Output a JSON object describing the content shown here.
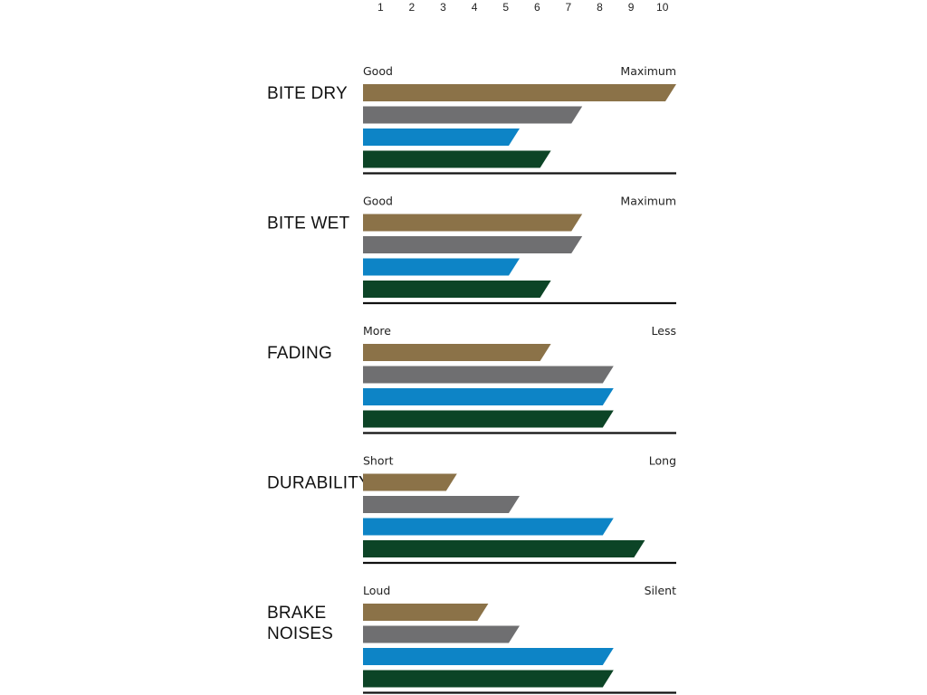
{
  "chart_data": {
    "type": "bar",
    "orientation": "horizontal",
    "x_ticks": [
      "1",
      "2",
      "3",
      "4",
      "5",
      "6",
      "7",
      "8",
      "9",
      "10"
    ],
    "xlim": [
      0,
      10
    ],
    "grid": false,
    "legend": "none",
    "series_colors": [
      "#8b7248",
      "#6f6f71",
      "#0d84c6",
      "#0c4426"
    ],
    "groups": [
      {
        "label_lines": [
          "BITE DRY"
        ],
        "low_label": "Good",
        "high_label": "Maximum",
        "values": [
          10,
          7,
          5,
          6
        ]
      },
      {
        "label_lines": [
          "BITE WET"
        ],
        "low_label": "Good",
        "high_label": "Maximum",
        "values": [
          7,
          7,
          5,
          6
        ]
      },
      {
        "label_lines": [
          "FADING"
        ],
        "low_label": "More",
        "high_label": "Less",
        "values": [
          6,
          8,
          8,
          8
        ]
      },
      {
        "label_lines": [
          "DURABILITY"
        ],
        "low_label": "Short",
        "high_label": "Long",
        "values": [
          3,
          5,
          8,
          9
        ]
      },
      {
        "label_lines": [
          "BRAKE",
          "NOISES"
        ],
        "low_label": "Loud",
        "high_label": "Silent",
        "values": [
          4,
          5,
          8,
          8
        ]
      }
    ]
  }
}
